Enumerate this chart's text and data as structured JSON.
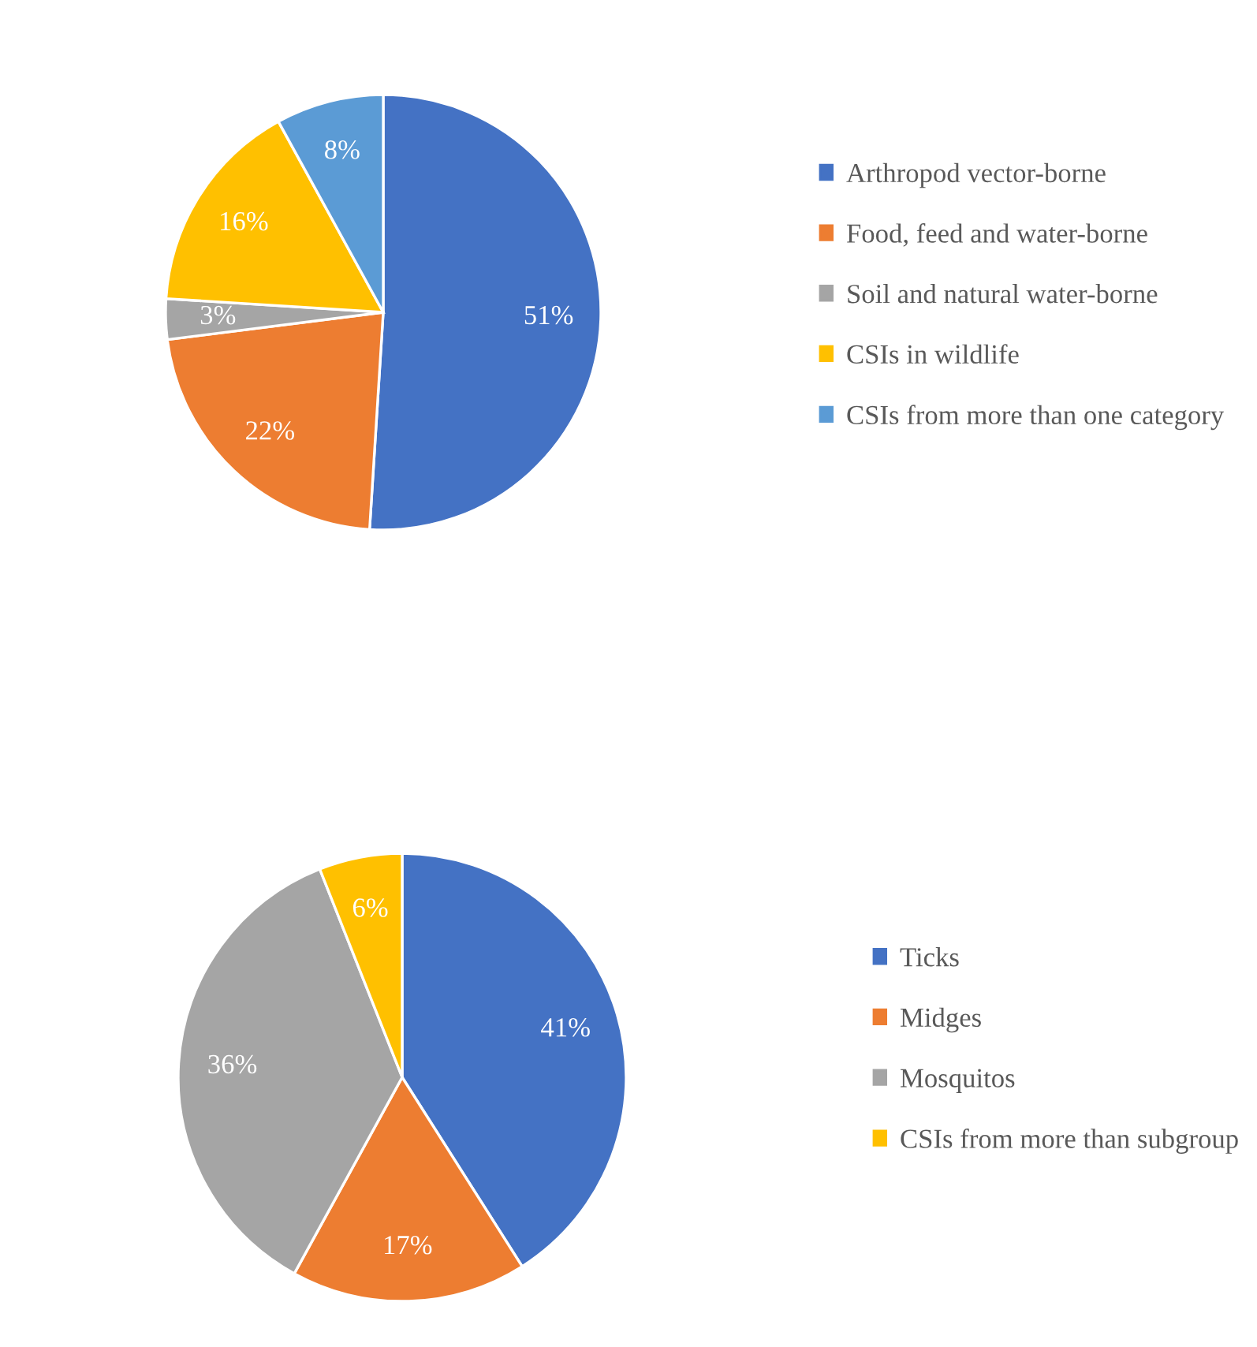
{
  "chart_data": [
    {
      "type": "pie",
      "categories": [
        "Arthropod vector-borne",
        "Food, feed and water-borne",
        "Soil and natural water-borne",
        "CSIs in wildlife",
        "CSIs from more than one category"
      ],
      "values": [
        51,
        22,
        3,
        16,
        8
      ],
      "value_labels": [
        "51%",
        "22%",
        "3%",
        "16%",
        "8%"
      ],
      "colors": [
        "#4472c4",
        "#ed7d31",
        "#a5a5a5",
        "#ffc000",
        "#5b9bd5"
      ],
      "legend": "right"
    },
    {
      "type": "pie",
      "categories": [
        "Ticks",
        "Midges",
        "Mosquitos",
        "CSIs from more than subgroup"
      ],
      "values": [
        41,
        17,
        36,
        6
      ],
      "value_labels": [
        "41%",
        "17%",
        "36%",
        "6%"
      ],
      "colors": [
        "#4472c4",
        "#ed7d31",
        "#a5a5a5",
        "#ffc000"
      ],
      "legend": "right"
    }
  ]
}
